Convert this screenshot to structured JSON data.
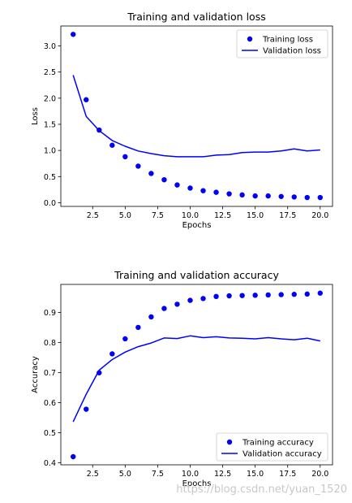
{
  "watermark": "https://blog.csdn.net/yuan_1520",
  "chart_data": [
    {
      "type": "line",
      "title": "Training and validation loss",
      "xlabel": "Epochs",
      "ylabel": "Loss",
      "xlim": [
        0.05,
        20.95
      ],
      "ylim": [
        -0.07,
        3.38
      ],
      "xticks": [
        2.5,
        5.0,
        7.5,
        10.0,
        12.5,
        15.0,
        17.5,
        20.0
      ],
      "xtick_labels": [
        "2.5",
        "5.0",
        "7.5",
        "10.0",
        "12.5",
        "15.0",
        "17.5",
        "20.0"
      ],
      "yticks": [
        0.0,
        0.5,
        1.0,
        1.5,
        2.0,
        2.5,
        3.0
      ],
      "ytick_labels": [
        "0.0",
        "0.5",
        "1.0",
        "1.5",
        "2.0",
        "2.5",
        "3.0"
      ],
      "grid": false,
      "legend_position": "top-right",
      "color": "#0000ff",
      "x": [
        1,
        2,
        3,
        4,
        5,
        6,
        7,
        8,
        9,
        10,
        11,
        12,
        13,
        14,
        15,
        16,
        17,
        18,
        19,
        20
      ],
      "series": [
        {
          "name": "Training loss",
          "style": "dots",
          "values": [
            3.22,
            1.97,
            1.39,
            1.1,
            0.88,
            0.7,
            0.56,
            0.44,
            0.34,
            0.28,
            0.23,
            0.2,
            0.17,
            0.15,
            0.13,
            0.13,
            0.12,
            0.11,
            0.1,
            0.1
          ]
        },
        {
          "name": "Validation loss",
          "style": "line",
          "values": [
            2.44,
            1.65,
            1.38,
            1.19,
            1.08,
            0.99,
            0.94,
            0.9,
            0.88,
            0.88,
            0.88,
            0.91,
            0.92,
            0.96,
            0.97,
            0.97,
            0.99,
            1.03,
            0.99,
            1.01
          ]
        }
      ]
    },
    {
      "type": "line",
      "title": "Training and validation accuracy",
      "xlabel": "Epochs",
      "ylabel": "Accuracy",
      "xlim": [
        0.05,
        20.95
      ],
      "ylim": [
        0.393,
        0.993
      ],
      "xticks": [
        2.5,
        5.0,
        7.5,
        10.0,
        12.5,
        15.0,
        17.5,
        20.0
      ],
      "xtick_labels": [
        "2.5",
        "5.0",
        "7.5",
        "10.0",
        "12.5",
        "15.0",
        "17.5",
        "20.0"
      ],
      "yticks": [
        0.4,
        0.5,
        0.6,
        0.7,
        0.8,
        0.9
      ],
      "ytick_labels": [
        "0.4",
        "0.5",
        "0.6",
        "0.7",
        "0.8",
        "0.9"
      ],
      "grid": false,
      "legend_position": "bottom-right",
      "color": "#0000ff",
      "x": [
        1,
        2,
        3,
        4,
        5,
        6,
        7,
        8,
        9,
        10,
        11,
        12,
        13,
        14,
        15,
        16,
        17,
        18,
        19,
        20
      ],
      "series": [
        {
          "name": "Training accuracy",
          "style": "dots",
          "values": [
            0.42,
            0.578,
            0.699,
            0.762,
            0.812,
            0.85,
            0.885,
            0.913,
            0.927,
            0.94,
            0.946,
            0.953,
            0.955,
            0.956,
            0.957,
            0.958,
            0.959,
            0.96,
            0.961,
            0.964
          ]
        },
        {
          "name": "Validation accuracy",
          "style": "line",
          "values": [
            0.536,
            0.628,
            0.708,
            0.743,
            0.768,
            0.786,
            0.798,
            0.815,
            0.813,
            0.822,
            0.816,
            0.819,
            0.815,
            0.814,
            0.812,
            0.816,
            0.812,
            0.809,
            0.814,
            0.805
          ]
        }
      ]
    }
  ]
}
